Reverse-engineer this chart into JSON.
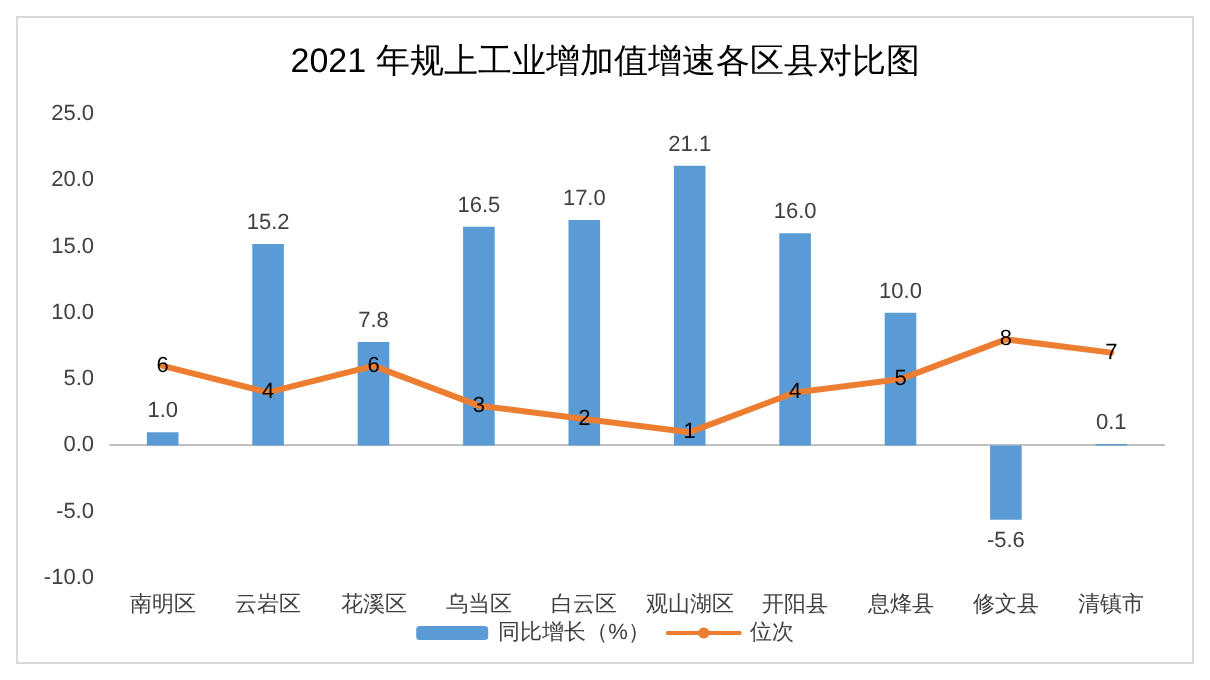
{
  "chart_data": {
    "type": "bar",
    "title": "2021 年规上工业增加值增速各区县对比图",
    "categories": [
      "南明区",
      "云岩区",
      "花溪区",
      "乌当区",
      "白云区",
      "观山湖区",
      "开阳县",
      "息烽县",
      "修文县",
      "清镇市"
    ],
    "series": [
      {
        "name": "同比增长（%）",
        "color": "#5b9bd5",
        "values": [
          1.0,
          15.2,
          7.8,
          16.5,
          17.0,
          21.1,
          16.0,
          10.0,
          -5.6,
          0.1
        ],
        "value_labels": [
          "1.0",
          "15.2",
          "7.8",
          "16.5",
          "17.0",
          "21.1",
          "16.0",
          "10.0",
          "-5.6",
          "0.1"
        ]
      },
      {
        "name": "位次",
        "type": "line",
        "color": "#ed7d31",
        "values": [
          6,
          4,
          6,
          3,
          2,
          1,
          4,
          5,
          8,
          7
        ],
        "value_labels": [
          "6",
          "4",
          "6",
          "3",
          "2",
          "1",
          "4",
          "5",
          "8",
          "7"
        ]
      }
    ],
    "ylim": [
      -10,
      25
    ],
    "yticks": [
      {
        "value": -10,
        "label": "-10.0"
      },
      {
        "value": -5,
        "label": "-5.0"
      },
      {
        "value": 0,
        "label": "0.0"
      },
      {
        "value": 5,
        "label": "5.0"
      },
      {
        "value": 10,
        "label": "10.0"
      },
      {
        "value": 15,
        "label": "15.0"
      },
      {
        "value": 20,
        "label": "20.0"
      },
      {
        "value": 25,
        "label": "25.0"
      }
    ],
    "legend": "bottom",
    "marker": "none",
    "line_style": "solid"
  }
}
